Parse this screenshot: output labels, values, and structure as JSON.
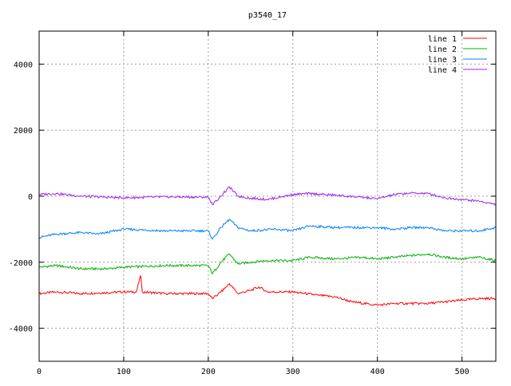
{
  "chart_data": {
    "type": "line",
    "title": "p3540_17",
    "xlabel": "",
    "ylabel": "",
    "xlim": [
      0,
      540
    ],
    "ylim": [
      -5000,
      5000
    ],
    "xticks": [
      0,
      100,
      200,
      300,
      400,
      500
    ],
    "yticks": [
      -4000,
      -2000,
      0,
      2000,
      4000
    ],
    "grid": true,
    "legend_position": "top-right",
    "series": [
      {
        "name": "line 1",
        "color": "#ff0000",
        "x": [
          0,
          20,
          50,
          100,
          115,
          120,
          122,
          150,
          200,
          205,
          215,
          225,
          235,
          250,
          260,
          270,
          300,
          330,
          350,
          370,
          400,
          420,
          440,
          460,
          480,
          500,
          520,
          540
        ],
        "y": [
          -2950,
          -2900,
          -2950,
          -2900,
          -2900,
          -2400,
          -2900,
          -2950,
          -2950,
          -3100,
          -2900,
          -2650,
          -2950,
          -2850,
          -2750,
          -2900,
          -2900,
          -3000,
          -3050,
          -3200,
          -3300,
          -3250,
          -3250,
          -3250,
          -3200,
          -3150,
          -3100,
          -3100
        ]
      },
      {
        "name": "line 2",
        "color": "#00b000",
        "x": [
          0,
          20,
          50,
          80,
          100,
          150,
          200,
          205,
          215,
          225,
          235,
          250,
          270,
          300,
          320,
          350,
          380,
          400,
          420,
          440,
          460,
          480,
          500,
          520,
          540
        ],
        "y": [
          -2150,
          -2100,
          -2200,
          -2200,
          -2150,
          -2100,
          -2100,
          -2350,
          -2000,
          -1750,
          -2050,
          -2000,
          -1950,
          -1950,
          -1850,
          -1900,
          -1850,
          -1900,
          -1850,
          -1800,
          -1750,
          -1850,
          -1900,
          -1850,
          -1950
        ]
      },
      {
        "name": "line 3",
        "color": "#0080ff",
        "x": [
          0,
          20,
          50,
          70,
          100,
          150,
          200,
          205,
          215,
          225,
          235,
          250,
          280,
          300,
          320,
          350,
          380,
          400,
          420,
          440,
          460,
          480,
          500,
          520,
          540
        ],
        "y": [
          -1250,
          -1150,
          -1100,
          -1150,
          -1000,
          -1050,
          -1050,
          -1300,
          -950,
          -700,
          -950,
          -1050,
          -1000,
          -1050,
          -900,
          -950,
          -950,
          -950,
          -1000,
          -950,
          -950,
          -1050,
          -1050,
          -1050,
          -950
        ]
      },
      {
        "name": "line 4",
        "color": "#a020f0",
        "x": [
          0,
          20,
          50,
          100,
          150,
          200,
          205,
          215,
          225,
          235,
          250,
          270,
          300,
          320,
          350,
          380,
          400,
          420,
          440,
          460,
          480,
          500,
          520,
          540
        ],
        "y": [
          50,
          80,
          0,
          -50,
          -20,
          -30,
          -250,
          0,
          280,
          0,
          -60,
          -100,
          50,
          80,
          30,
          -30,
          -80,
          50,
          100,
          80,
          -50,
          -100,
          -150,
          -250
        ]
      }
    ]
  }
}
